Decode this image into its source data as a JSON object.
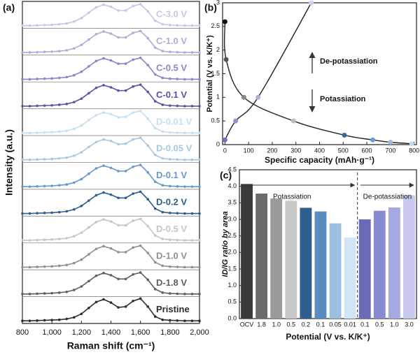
{
  "chart_data": [
    {
      "type": "ridgeline",
      "panel": "(a)",
      "xlabel": "Raman shift (cm⁻¹)",
      "ylabel": "Intensity (a.u.)",
      "x": [
        800,
        850,
        900,
        950,
        1000,
        1050,
        1100,
        1150,
        1200,
        1250,
        1300,
        1350,
        1400,
        1450,
        1500,
        1550,
        1600,
        1650,
        1700,
        1750,
        1800,
        1850,
        1900,
        1950,
        2000
      ],
      "xlim": [
        800,
        2000
      ],
      "xticks": [
        800,
        {
          "value": 1000,
          "label": "1,000"
        },
        {
          "value": 1200,
          "label": "1,200"
        },
        {
          "value": 1400,
          "label": "1,400"
        },
        {
          "value": 1600,
          "label": "1,600"
        },
        {
          "value": 1800,
          "label": "1,800"
        },
        {
          "value": 2000,
          "label": "2,000"
        }
      ],
      "ylim": [
        0,
        1
      ],
      "series": [
        {
          "name": "C-3.0 V",
          "color": "#c6c6e6",
          "values": [
            0.02,
            0.02,
            0.03,
            0.04,
            0.05,
            0.07,
            0.1,
            0.17,
            0.3,
            0.5,
            0.7,
            0.8,
            0.72,
            0.58,
            0.58,
            0.75,
            0.82,
            0.55,
            0.2,
            0.07,
            0.04,
            0.03,
            0.02,
            0.02,
            0.02
          ]
        },
        {
          "name": "C-1.0 V",
          "color": "#adacdb",
          "values": [
            0.02,
            0.02,
            0.03,
            0.04,
            0.05,
            0.07,
            0.1,
            0.17,
            0.3,
            0.5,
            0.7,
            0.8,
            0.72,
            0.58,
            0.58,
            0.75,
            0.82,
            0.55,
            0.2,
            0.07,
            0.04,
            0.03,
            0.02,
            0.02,
            0.02
          ]
        },
        {
          "name": "C-0.5 V",
          "color": "#8886c6",
          "values": [
            0.02,
            0.02,
            0.03,
            0.04,
            0.05,
            0.07,
            0.1,
            0.17,
            0.3,
            0.5,
            0.7,
            0.8,
            0.72,
            0.6,
            0.6,
            0.75,
            0.82,
            0.55,
            0.2,
            0.07,
            0.04,
            0.03,
            0.02,
            0.02,
            0.02
          ]
        },
        {
          "name": "C-0.1 V",
          "color": "#5a50a6",
          "values": [
            0.02,
            0.02,
            0.03,
            0.04,
            0.05,
            0.07,
            0.1,
            0.17,
            0.3,
            0.5,
            0.7,
            0.8,
            0.72,
            0.6,
            0.6,
            0.75,
            0.82,
            0.55,
            0.2,
            0.07,
            0.04,
            0.03,
            0.02,
            0.02,
            0.02
          ]
        },
        {
          "name": "D-0.01 V",
          "color": "#c6dff0",
          "values": [
            0.02,
            0.02,
            0.03,
            0.04,
            0.05,
            0.07,
            0.1,
            0.17,
            0.3,
            0.5,
            0.68,
            0.78,
            0.72,
            0.6,
            0.62,
            0.78,
            0.84,
            0.55,
            0.2,
            0.07,
            0.04,
            0.03,
            0.02,
            0.02,
            0.02
          ]
        },
        {
          "name": "D-0.05 V",
          "color": "#a4c9e4",
          "values": [
            0.02,
            0.02,
            0.03,
            0.04,
            0.05,
            0.07,
            0.1,
            0.17,
            0.3,
            0.5,
            0.68,
            0.78,
            0.72,
            0.6,
            0.62,
            0.78,
            0.84,
            0.55,
            0.2,
            0.07,
            0.04,
            0.03,
            0.02,
            0.02,
            0.02
          ]
        },
        {
          "name": "D-0.1 V",
          "color": "#6898c8",
          "values": [
            0.02,
            0.02,
            0.03,
            0.04,
            0.05,
            0.07,
            0.1,
            0.17,
            0.3,
            0.5,
            0.7,
            0.8,
            0.72,
            0.6,
            0.6,
            0.76,
            0.83,
            0.55,
            0.2,
            0.07,
            0.04,
            0.03,
            0.02,
            0.02,
            0.02
          ]
        },
        {
          "name": "D-0.2 V",
          "color": "#2e5d8c",
          "values": [
            0.02,
            0.02,
            0.03,
            0.04,
            0.05,
            0.07,
            0.1,
            0.17,
            0.3,
            0.5,
            0.7,
            0.8,
            0.72,
            0.6,
            0.6,
            0.76,
            0.83,
            0.55,
            0.2,
            0.07,
            0.04,
            0.03,
            0.02,
            0.02,
            0.02
          ]
        },
        {
          "name": "D-0.5 V",
          "color": "#c6c6c6",
          "values": [
            0.02,
            0.02,
            0.03,
            0.04,
            0.05,
            0.07,
            0.1,
            0.17,
            0.3,
            0.5,
            0.7,
            0.8,
            0.72,
            0.58,
            0.58,
            0.75,
            0.82,
            0.55,
            0.2,
            0.07,
            0.04,
            0.03,
            0.02,
            0.02,
            0.02
          ]
        },
        {
          "name": "D-1.0 V",
          "color": "#8f8f8f",
          "values": [
            0.02,
            0.02,
            0.03,
            0.04,
            0.05,
            0.07,
            0.1,
            0.17,
            0.3,
            0.5,
            0.7,
            0.8,
            0.72,
            0.58,
            0.58,
            0.75,
            0.82,
            0.55,
            0.2,
            0.07,
            0.04,
            0.03,
            0.02,
            0.02,
            0.02
          ]
        },
        {
          "name": "D-1.8 V",
          "color": "#5e5e5e",
          "values": [
            0.02,
            0.02,
            0.03,
            0.04,
            0.05,
            0.07,
            0.1,
            0.17,
            0.3,
            0.5,
            0.7,
            0.8,
            0.72,
            0.58,
            0.58,
            0.75,
            0.82,
            0.55,
            0.2,
            0.07,
            0.04,
            0.03,
            0.02,
            0.02,
            0.02
          ]
        },
        {
          "name": "Pristine",
          "color": "#2e2e2e",
          "values": [
            0.02,
            0.02,
            0.03,
            0.04,
            0.05,
            0.06,
            0.09,
            0.15,
            0.28,
            0.5,
            0.72,
            0.82,
            0.7,
            0.52,
            0.55,
            0.76,
            0.85,
            0.55,
            0.18,
            0.06,
            0.04,
            0.03,
            0.02,
            0.02,
            0.02
          ]
        }
      ]
    },
    {
      "type": "line",
      "panel": "(b)",
      "xlabel": "Specific capacity (mAh·g⁻¹)",
      "ylabel": "Potential (V vs. K/K⁺)",
      "xlim": [
        -10,
        810
      ],
      "xticks": [
        0,
        100,
        200,
        300,
        400,
        500,
        600,
        700,
        800
      ],
      "ylim": [
        0,
        3
      ],
      "yticks": [
        0,
        0.5,
        1,
        1.5,
        2,
        2.5,
        3
      ],
      "annotations": [
        "De-potassiation",
        "Potassiation"
      ],
      "series": [
        {
          "name": "Potassiation",
          "color": "#222222",
          "x": [
            0,
            5,
            80,
            290,
            505,
            625,
            700,
            790
          ],
          "values": [
            2.6,
            1.8,
            1.0,
            0.5,
            0.2,
            0.1,
            0.05,
            0.02
          ],
          "marker_colors": [
            "#111111",
            "#555555",
            "#888888",
            "#bbbbbb",
            "#3a6a9a",
            "#6a9cd0",
            "#9ab8e0",
            "#c8d8f0"
          ]
        },
        {
          "name": "De-potassiation",
          "color": "#222222",
          "x": [
            0,
            45,
            140,
            365
          ],
          "values": [
            0.1,
            0.5,
            1.0,
            3.0
          ],
          "marker_colors": [
            "#7070c0",
            "#9090d0",
            "#b0b0e0",
            "#d0d0f0"
          ]
        }
      ]
    },
    {
      "type": "bar",
      "panel": "(c)",
      "xlabel": "Potential  (V vs. K/K⁺)",
      "ylabel": "ID/IG ratio by area",
      "categories": [
        "OCV",
        "1.8",
        "1.0",
        "0.5",
        "0.2",
        "0.1",
        "0.05",
        "0.01",
        "0.1",
        "0.5",
        "1.0",
        "3.0"
      ],
      "values": [
        4.07,
        3.78,
        3.63,
        3.56,
        3.35,
        3.24,
        2.88,
        2.45,
        3.0,
        3.26,
        3.36,
        3.73
      ],
      "colors": [
        "#3a3a3a",
        "#6a6a6a",
        "#9a9a9a",
        "#c8c8c8",
        "#2f5f8f",
        "#5a8cc0",
        "#9cc0e0",
        "#d0e6f5",
        "#6a6ab8",
        "#8a8ad0",
        "#a8a8e0",
        "#c8c8f0"
      ],
      "ylim": [
        0,
        4.5
      ],
      "yticks": [
        {
          "value": 0,
          "label": "0.0"
        },
        {
          "value": 0.5,
          "label": "0.5"
        },
        {
          "value": 1,
          "label": "1.0"
        },
        {
          "value": 1.5,
          "label": "1.5"
        },
        {
          "value": 2,
          "label": "2.0"
        },
        {
          "value": 2.5,
          "label": "2.5"
        },
        {
          "value": 3,
          "label": "3.0"
        },
        {
          "value": 3.5,
          "label": "3.5"
        },
        {
          "value": 4,
          "label": "4.0"
        },
        {
          "value": 4.5,
          "label": "4.5"
        }
      ],
      "annotations": [
        "Potassiation",
        "De-potassiation"
      ]
    }
  ]
}
